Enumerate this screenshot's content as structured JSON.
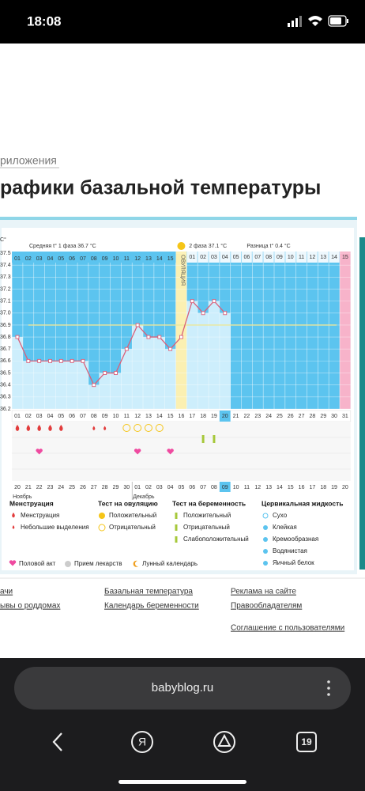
{
  "status_bar": {
    "time": "18:08"
  },
  "page": {
    "breadcrumb": "риложения",
    "title": "рафики базальной температуры"
  },
  "chart_data": {
    "type": "line",
    "y_unit": "С°",
    "phase1_label": "Средняя t° 1 фаза 36.7 °C",
    "phase2_label": "2 фаза 37.1 °C",
    "difference_label": "Разница t° 0.4 °C",
    "ovulation_label": "ОВУЛЯЦИЯ",
    "categories": [
      "01",
      "02",
      "03",
      "04",
      "05",
      "06",
      "07",
      "08",
      "09",
      "10",
      "11",
      "12",
      "13",
      "14",
      "15",
      "16",
      "17",
      "18",
      "19",
      "20",
      "21",
      "22",
      "23",
      "24",
      "25",
      "26",
      "27",
      "28",
      "29",
      "30",
      "31"
    ],
    "dates": [
      "20",
      "21",
      "22",
      "23",
      "24",
      "25",
      "26",
      "27",
      "28",
      "29",
      "30",
      "01",
      "02",
      "03",
      "04",
      "05",
      "06",
      "07",
      "08",
      "09",
      "10",
      "11",
      "12",
      "13",
      "14",
      "15",
      "16",
      "17",
      "18",
      "19",
      "20"
    ],
    "months": [
      "Ноябрь",
      "Декабрь"
    ],
    "post_ovulation_days": [
      "01",
      "02",
      "03",
      "04",
      "05",
      "06",
      "07",
      "08",
      "09",
      "10",
      "11",
      "12",
      "13",
      "14",
      "15"
    ],
    "values": [
      36.8,
      36.6,
      36.6,
      36.6,
      36.6,
      36.6,
      36.6,
      36.4,
      36.5,
      36.5,
      36.7,
      36.9,
      36.8,
      36.8,
      36.7,
      36.8,
      37.1,
      37.0,
      37.1,
      37.0,
      null,
      null,
      null,
      null,
      null,
      null,
      null,
      null,
      null,
      null,
      null
    ],
    "color": "#d9607a",
    "coverline": 36.9,
    "ovulation_day": "16",
    "current_day": "20",
    "ylim": [
      36.2,
      37.5
    ],
    "yticks": [
      37.5,
      37.4,
      37.3,
      37.2,
      37.1,
      {
        "value": 37,
        "label": "37.0"
      },
      36.9,
      36.8,
      36.7,
      36.6,
      36.5,
      36.4,
      36.3,
      36.2
    ],
    "grid": true,
    "markers": {
      "menstruation": [
        "01",
        "02",
        "03",
        "04",
        "05"
      ],
      "spotting": [
        "08",
        "09"
      ],
      "ovulation_test_negative": [
        "11",
        "12",
        "13",
        "14"
      ],
      "pregnancy_test_weak": [
        "18",
        "19"
      ],
      "intercourse": [
        "03",
        "12",
        "15"
      ]
    },
    "legend": {
      "groups": [
        {
          "title": "Менструация",
          "items": [
            "Менструация",
            "Небольшие выделения"
          ]
        },
        {
          "title": "Тест на овуляцию",
          "items": [
            "Положительный",
            "Отрицательный"
          ]
        },
        {
          "title": "Тест на беременность",
          "items": [
            "Положительный",
            "Отрицательный",
            "Слабоположительный"
          ]
        },
        {
          "title": "Цервикальная жидкость",
          "items": [
            "Сухо",
            "Клейкая",
            "Кремообразная",
            "Водянистая",
            "Яичный белок"
          ]
        }
      ],
      "extra": [
        "Половой акт",
        "Прием лекарств",
        "Лунный календарь"
      ]
    }
  },
  "footer": {
    "links": [
      [
        "ачи",
        "ывы о роддомах"
      ],
      [
        "Базальная температура",
        "Календарь беременности"
      ],
      [
        "Реклама на сайте",
        "Правообладателям",
        "Соглашение с пользователями"
      ]
    ]
  },
  "browser": {
    "url": "babyblog.ru",
    "tabs": "19"
  }
}
